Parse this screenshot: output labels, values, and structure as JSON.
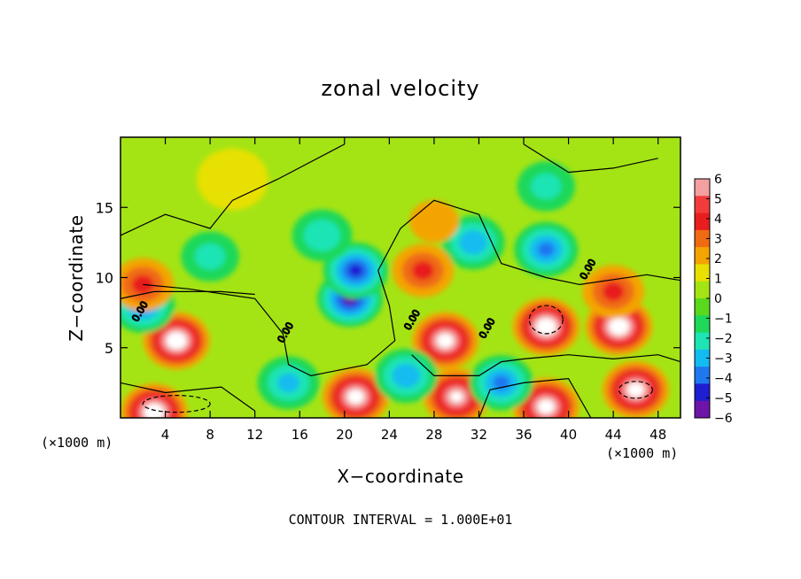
{
  "chart_data": {
    "type": "heatmap",
    "title": "zonal velocity",
    "xlabel": "X−coordinate",
    "ylabel": "Z−coordinate",
    "x_unit_left": "(×1000 m)",
    "x_unit_right": "(×1000 m)",
    "footer": "CONTOUR INTERVAL = 1.000E+01",
    "xlim": [
      0,
      50
    ],
    "ylim": [
      0,
      20
    ],
    "x_ticks": [
      4,
      8,
      12,
      16,
      20,
      24,
      28,
      32,
      36,
      40,
      44,
      48
    ],
    "y_ticks": [
      5,
      10,
      15
    ],
    "contour_labels": [
      "0.00",
      "0.00",
      "0.00",
      "0.00",
      "0.00"
    ],
    "colorbar": {
      "min": -6,
      "max": 6,
      "ticks": [
        6,
        5,
        4,
        3,
        2,
        1,
        0,
        -1,
        -2,
        -3,
        -4,
        -5,
        -6
      ],
      "colors": [
        "#f4a0a0",
        "#f23c3c",
        "#e81e1e",
        "#f06a12",
        "#f4a400",
        "#e8e000",
        "#a4e414",
        "#5ad81e",
        "#1ed85a",
        "#1ee4b4",
        "#12bcf0",
        "#1e78f0",
        "#1e1ed2",
        "#6e14a8"
      ]
    },
    "field_features": [
      {
        "x": 20.5,
        "z": 8.5,
        "value": -5.5
      },
      {
        "x": 21.0,
        "z": 10.5,
        "value": -5.0
      },
      {
        "x": 5.0,
        "z": 5.5,
        "value": 7.0
      },
      {
        "x": 44.5,
        "z": 6.5,
        "value": 7.0
      },
      {
        "x": 38.0,
        "z": 6.5,
        "value": 7.0
      },
      {
        "x": 29.0,
        "z": 5.5,
        "value": 6.5
      },
      {
        "x": 3.0,
        "z": 0.4,
        "value": 7.0
      },
      {
        "x": 21.0,
        "z": 1.5,
        "value": 6.5
      },
      {
        "x": 30.0,
        "z": 1.5,
        "value": 6.0
      },
      {
        "x": 38.0,
        "z": 0.8,
        "value": 6.5
      },
      {
        "x": 46.0,
        "z": 2.0,
        "value": 6.5
      },
      {
        "x": 25.5,
        "z": 3.0,
        "value": -3.5
      },
      {
        "x": 34.0,
        "z": 2.5,
        "value": -4.0
      },
      {
        "x": 15.0,
        "z": 2.5,
        "value": -3.0
      },
      {
        "x": 31.5,
        "z": 12.5,
        "value": -3.5
      },
      {
        "x": 38.0,
        "z": 12.0,
        "value": -4.0
      },
      {
        "x": 18.0,
        "z": 13.0,
        "value": -2.5
      },
      {
        "x": 8.0,
        "z": 11.5,
        "value": -2.0
      },
      {
        "x": 2.0,
        "z": 8.0,
        "value": -4.0
      },
      {
        "x": 27.0,
        "z": 10.5,
        "value": 3.0
      },
      {
        "x": 2.0,
        "z": 9.5,
        "value": 3.0
      },
      {
        "x": 44.0,
        "z": 9.0,
        "value": 3.0
      },
      {
        "x": 38.0,
        "z": 16.5,
        "value": -2.0
      },
      {
        "x": 28.0,
        "z": 14.0,
        "value": 1.0
      },
      {
        "x": 10.0,
        "z": 17.0,
        "value": 0.5
      }
    ]
  }
}
